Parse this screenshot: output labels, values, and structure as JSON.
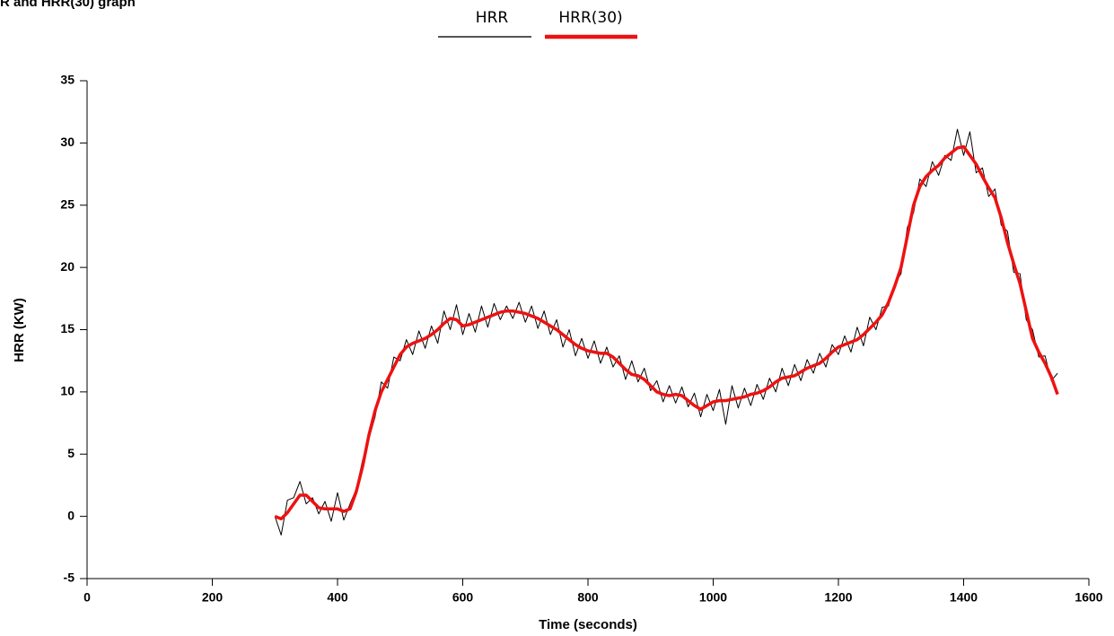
{
  "chart_data": {
    "type": "line",
    "title": "R and HRR(30) graph",
    "x_label": "Time (seconds)",
    "y_label": "HRR (KW)",
    "xlim": [
      0,
      1600
    ],
    "xticks": [
      0,
      200,
      400,
      600,
      800,
      1000,
      1200,
      1400,
      1600
    ],
    "ylim": [
      -5,
      35
    ],
    "yticks": [
      -5,
      0,
      5,
      10,
      15,
      20,
      25,
      30,
      35
    ],
    "x": [
      300,
      310,
      320,
      330,
      340,
      350,
      360,
      370,
      380,
      390,
      400,
      410,
      420,
      430,
      440,
      450,
      460,
      470,
      480,
      490,
      500,
      510,
      520,
      530,
      540,
      550,
      560,
      570,
      580,
      590,
      600,
      610,
      620,
      630,
      640,
      650,
      660,
      670,
      680,
      690,
      700,
      710,
      720,
      730,
      740,
      750,
      760,
      770,
      780,
      790,
      800,
      810,
      820,
      830,
      840,
      850,
      860,
      870,
      880,
      890,
      900,
      910,
      920,
      930,
      940,
      950,
      960,
      970,
      980,
      990,
      1000,
      1010,
      1020,
      1030,
      1040,
      1050,
      1060,
      1070,
      1080,
      1090,
      1100,
      1110,
      1120,
      1130,
      1140,
      1150,
      1160,
      1170,
      1180,
      1190,
      1200,
      1210,
      1220,
      1230,
      1240,
      1250,
      1260,
      1270,
      1280,
      1290,
      1300,
      1310,
      1320,
      1330,
      1340,
      1350,
      1360,
      1370,
      1380,
      1390,
      1400,
      1410,
      1420,
      1430,
      1440,
      1450,
      1460,
      1470,
      1480,
      1490,
      1500,
      1510,
      1520,
      1530,
      1540,
      1550
    ],
    "series": [
      {
        "name": "HRR",
        "color": "#000000",
        "legend_color": "#555555",
        "width": 1,
        "values": [
          0,
          -1.5,
          1.3,
          1.5,
          2.8,
          1.0,
          1.5,
          0.2,
          1.2,
          -0.4,
          1.9,
          -0.3,
          1.0,
          2.2,
          4.5,
          6.2,
          8.0,
          10.8,
          10.3,
          12.8,
          12.5,
          14.2,
          13.0,
          14.9,
          13.5,
          15.3,
          13.9,
          16.5,
          15.0,
          17.0,
          14.6,
          16.3,
          14.8,
          16.9,
          15.2,
          17.1,
          15.8,
          16.9,
          15.9,
          17.2,
          15.6,
          16.9,
          15.1,
          16.5,
          14.6,
          15.8,
          13.6,
          15.0,
          12.9,
          14.3,
          12.7,
          14.1,
          12.3,
          13.6,
          12.0,
          12.9,
          11.0,
          12.5,
          10.8,
          11.9,
          10.1,
          10.9,
          9.2,
          10.5,
          9.1,
          10.4,
          8.8,
          9.9,
          8.0,
          9.8,
          8.5,
          10.2,
          7.4,
          10.5,
          8.7,
          10.3,
          8.9,
          10.6,
          9.4,
          11.1,
          10.0,
          11.9,
          10.5,
          12.2,
          10.9,
          12.6,
          11.5,
          13.1,
          12.0,
          13.8,
          13.0,
          14.5,
          13.2,
          15.2,
          13.7,
          16.0,
          15.0,
          16.8,
          16.9,
          18.7,
          19.5,
          23.2,
          24.4,
          27.1,
          26.5,
          28.5,
          27.4,
          29.0,
          28.6,
          31.1,
          29.0,
          30.9,
          27.6,
          28.0,
          25.7,
          26.3,
          23.4,
          22.9,
          19.6,
          19.5,
          15.8,
          15.0,
          12.8,
          12.9,
          10.9,
          11.5
        ]
      },
      {
        "name": "HRR(30)",
        "color": "#ee1111",
        "legend_color": "#ee1111",
        "width": 3.5,
        "values": [
          0,
          -0.2,
          0.3,
          1.0,
          1.7,
          1.7,
          1.2,
          0.7,
          0.6,
          0.6,
          0.6,
          0.4,
          0.6,
          2.0,
          4.0,
          6.5,
          8.5,
          10.0,
          11.0,
          12.0,
          13.0,
          13.6,
          13.9,
          14.1,
          14.3,
          14.6,
          15.0,
          15.5,
          15.9,
          15.8,
          15.3,
          15.4,
          15.6,
          15.8,
          16.0,
          16.2,
          16.4,
          16.5,
          16.5,
          16.4,
          16.3,
          16.1,
          15.9,
          15.6,
          15.3,
          15.0,
          14.6,
          14.2,
          13.8,
          13.5,
          13.3,
          13.2,
          13.1,
          13.1,
          12.8,
          12.3,
          11.8,
          11.4,
          11.3,
          11.0,
          10.5,
          10.0,
          9.8,
          9.7,
          9.8,
          9.7,
          9.3,
          8.9,
          8.6,
          8.9,
          9.2,
          9.3,
          9.3,
          9.4,
          9.5,
          9.6,
          9.8,
          9.9,
          10.1,
          10.4,
          10.8,
          11.1,
          11.2,
          11.3,
          11.6,
          11.9,
          12.1,
          12.3,
          12.7,
          13.2,
          13.6,
          13.8,
          14.0,
          14.2,
          14.6,
          15.1,
          15.6,
          16.2,
          17.2,
          18.5,
          20.0,
          22.5,
          25.0,
          26.5,
          27.3,
          27.8,
          28.2,
          28.8,
          29.2,
          29.6,
          29.7,
          29.0,
          28.3,
          27.3,
          26.4,
          25.6,
          24.0,
          22.0,
          20.3,
          18.7,
          16.5,
          14.3,
          13.2,
          12.3,
          11.2,
          9.8
        ]
      }
    ]
  }
}
